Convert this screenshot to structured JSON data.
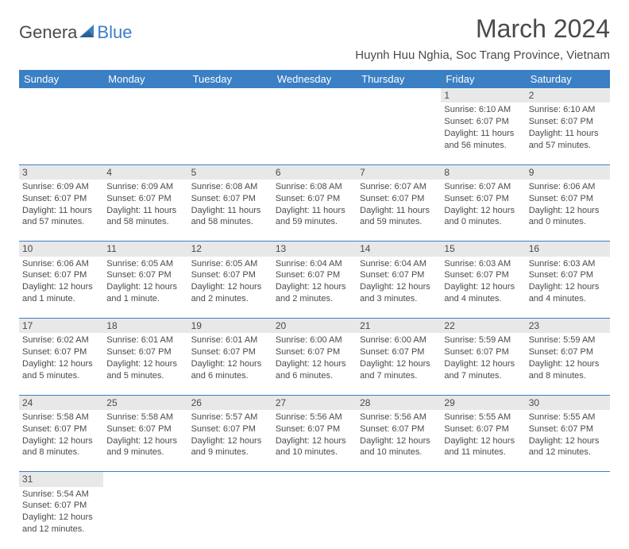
{
  "logo": {
    "part1": "Genera",
    "part2": "Blue"
  },
  "title": "March 2024",
  "location": "Huynh Huu Nghia, Soc Trang Province, Vietnam",
  "colors": {
    "header_bg": "#3b7fc4",
    "header_text": "#ffffff",
    "daynum_bg": "#e8e8e8",
    "text": "#4a4a4a",
    "rule": "#3b7fc4",
    "page_bg": "#ffffff"
  },
  "fonts": {
    "title_size": 32,
    "location_size": 15,
    "weekday_size": 13,
    "cell_size": 11
  },
  "weekdays": [
    "Sunday",
    "Monday",
    "Tuesday",
    "Wednesday",
    "Thursday",
    "Friday",
    "Saturday"
  ],
  "weeks": [
    {
      "days": [
        null,
        null,
        null,
        null,
        null,
        {
          "n": "1",
          "sunrise": "Sunrise: 6:10 AM",
          "sunset": "Sunset: 6:07 PM",
          "daylight": "Daylight: 11 hours and 56 minutes."
        },
        {
          "n": "2",
          "sunrise": "Sunrise: 6:10 AM",
          "sunset": "Sunset: 6:07 PM",
          "daylight": "Daylight: 11 hours and 57 minutes."
        }
      ]
    },
    {
      "days": [
        {
          "n": "3",
          "sunrise": "Sunrise: 6:09 AM",
          "sunset": "Sunset: 6:07 PM",
          "daylight": "Daylight: 11 hours and 57 minutes."
        },
        {
          "n": "4",
          "sunrise": "Sunrise: 6:09 AM",
          "sunset": "Sunset: 6:07 PM",
          "daylight": "Daylight: 11 hours and 58 minutes."
        },
        {
          "n": "5",
          "sunrise": "Sunrise: 6:08 AM",
          "sunset": "Sunset: 6:07 PM",
          "daylight": "Daylight: 11 hours and 58 minutes."
        },
        {
          "n": "6",
          "sunrise": "Sunrise: 6:08 AM",
          "sunset": "Sunset: 6:07 PM",
          "daylight": "Daylight: 11 hours and 59 minutes."
        },
        {
          "n": "7",
          "sunrise": "Sunrise: 6:07 AM",
          "sunset": "Sunset: 6:07 PM",
          "daylight": "Daylight: 11 hours and 59 minutes."
        },
        {
          "n": "8",
          "sunrise": "Sunrise: 6:07 AM",
          "sunset": "Sunset: 6:07 PM",
          "daylight": "Daylight: 12 hours and 0 minutes."
        },
        {
          "n": "9",
          "sunrise": "Sunrise: 6:06 AM",
          "sunset": "Sunset: 6:07 PM",
          "daylight": "Daylight: 12 hours and 0 minutes."
        }
      ]
    },
    {
      "days": [
        {
          "n": "10",
          "sunrise": "Sunrise: 6:06 AM",
          "sunset": "Sunset: 6:07 PM",
          "daylight": "Daylight: 12 hours and 1 minute."
        },
        {
          "n": "11",
          "sunrise": "Sunrise: 6:05 AM",
          "sunset": "Sunset: 6:07 PM",
          "daylight": "Daylight: 12 hours and 1 minute."
        },
        {
          "n": "12",
          "sunrise": "Sunrise: 6:05 AM",
          "sunset": "Sunset: 6:07 PM",
          "daylight": "Daylight: 12 hours and 2 minutes."
        },
        {
          "n": "13",
          "sunrise": "Sunrise: 6:04 AM",
          "sunset": "Sunset: 6:07 PM",
          "daylight": "Daylight: 12 hours and 2 minutes."
        },
        {
          "n": "14",
          "sunrise": "Sunrise: 6:04 AM",
          "sunset": "Sunset: 6:07 PM",
          "daylight": "Daylight: 12 hours and 3 minutes."
        },
        {
          "n": "15",
          "sunrise": "Sunrise: 6:03 AM",
          "sunset": "Sunset: 6:07 PM",
          "daylight": "Daylight: 12 hours and 4 minutes."
        },
        {
          "n": "16",
          "sunrise": "Sunrise: 6:03 AM",
          "sunset": "Sunset: 6:07 PM",
          "daylight": "Daylight: 12 hours and 4 minutes."
        }
      ]
    },
    {
      "days": [
        {
          "n": "17",
          "sunrise": "Sunrise: 6:02 AM",
          "sunset": "Sunset: 6:07 PM",
          "daylight": "Daylight: 12 hours and 5 minutes."
        },
        {
          "n": "18",
          "sunrise": "Sunrise: 6:01 AM",
          "sunset": "Sunset: 6:07 PM",
          "daylight": "Daylight: 12 hours and 5 minutes."
        },
        {
          "n": "19",
          "sunrise": "Sunrise: 6:01 AM",
          "sunset": "Sunset: 6:07 PM",
          "daylight": "Daylight: 12 hours and 6 minutes."
        },
        {
          "n": "20",
          "sunrise": "Sunrise: 6:00 AM",
          "sunset": "Sunset: 6:07 PM",
          "daylight": "Daylight: 12 hours and 6 minutes."
        },
        {
          "n": "21",
          "sunrise": "Sunrise: 6:00 AM",
          "sunset": "Sunset: 6:07 PM",
          "daylight": "Daylight: 12 hours and 7 minutes."
        },
        {
          "n": "22",
          "sunrise": "Sunrise: 5:59 AM",
          "sunset": "Sunset: 6:07 PM",
          "daylight": "Daylight: 12 hours and 7 minutes."
        },
        {
          "n": "23",
          "sunrise": "Sunrise: 5:59 AM",
          "sunset": "Sunset: 6:07 PM",
          "daylight": "Daylight: 12 hours and 8 minutes."
        }
      ]
    },
    {
      "days": [
        {
          "n": "24",
          "sunrise": "Sunrise: 5:58 AM",
          "sunset": "Sunset: 6:07 PM",
          "daylight": "Daylight: 12 hours and 8 minutes."
        },
        {
          "n": "25",
          "sunrise": "Sunrise: 5:58 AM",
          "sunset": "Sunset: 6:07 PM",
          "daylight": "Daylight: 12 hours and 9 minutes."
        },
        {
          "n": "26",
          "sunrise": "Sunrise: 5:57 AM",
          "sunset": "Sunset: 6:07 PM",
          "daylight": "Daylight: 12 hours and 9 minutes."
        },
        {
          "n": "27",
          "sunrise": "Sunrise: 5:56 AM",
          "sunset": "Sunset: 6:07 PM",
          "daylight": "Daylight: 12 hours and 10 minutes."
        },
        {
          "n": "28",
          "sunrise": "Sunrise: 5:56 AM",
          "sunset": "Sunset: 6:07 PM",
          "daylight": "Daylight: 12 hours and 10 minutes."
        },
        {
          "n": "29",
          "sunrise": "Sunrise: 5:55 AM",
          "sunset": "Sunset: 6:07 PM",
          "daylight": "Daylight: 12 hours and 11 minutes."
        },
        {
          "n": "30",
          "sunrise": "Sunrise: 5:55 AM",
          "sunset": "Sunset: 6:07 PM",
          "daylight": "Daylight: 12 hours and 12 minutes."
        }
      ]
    },
    {
      "days": [
        {
          "n": "31",
          "sunrise": "Sunrise: 5:54 AM",
          "sunset": "Sunset: 6:07 PM",
          "daylight": "Daylight: 12 hours and 12 minutes."
        },
        null,
        null,
        null,
        null,
        null,
        null
      ]
    }
  ]
}
